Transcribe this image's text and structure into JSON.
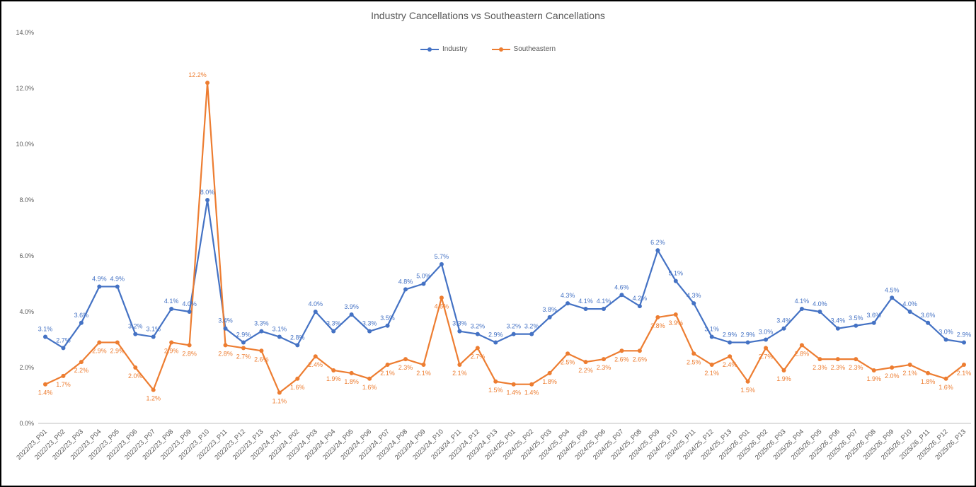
{
  "frame": {
    "background": "#ffffff",
    "border_color": "#000000"
  },
  "chart_data": {
    "type": "line",
    "title": "Industry Cancellations vs Southeastern Cancellations",
    "title_color": "#595959",
    "axis_text_color": "#595959",
    "grid": false,
    "legend_position": "top-center",
    "data_label_format": "0.0%",
    "categories": [
      "2022/23_P01",
      "2022/23_P02",
      "2022/23_P03",
      "2022/23_P04",
      "2022/23_P05",
      "2022/23_P06",
      "2022/23_P07",
      "2022/23_P08",
      "2022/23_P09",
      "2022/23_P10",
      "2022/23_P11",
      "2022/23_P12",
      "2022/23_P13",
      "2023/24_P01",
      "2023/24_P02",
      "2023/24_P03",
      "2023/24_P04",
      "2023/24_P05",
      "2023/24_P06",
      "2023/24_P07",
      "2023/24_P08",
      "2023/24_P09",
      "2023/24_P10",
      "2023/24_P11",
      "2023/24_P12",
      "2023/24_P13",
      "2024/25_P01",
      "2024/25_P02",
      "2024/25_P03",
      "2024/25_P04",
      "2024/25_P05",
      "2024/25_P06",
      "2024/25_P07",
      "2024/25_P08",
      "2024/25_P09",
      "2024/25_P10",
      "2024/25_P11",
      "2024/25_P12",
      "2024/25_P13",
      "2025/26_P01",
      "2025/26_P02",
      "2025/26_P03",
      "2025/26_P04",
      "2025/26_P05",
      "2025/26_P06",
      "2025/26_P07",
      "2025/26_P08",
      "2025/26_P09",
      "2025/26_P10",
      "2025/26_P11",
      "2025/26_P12",
      "2025/26_P13"
    ],
    "series": [
      {
        "name": "Industry",
        "color": "#4472C4",
        "label_position": "above",
        "values": [
          3.1,
          2.7,
          3.6,
          4.9,
          4.9,
          3.2,
          3.1,
          4.1,
          4.0,
          8.0,
          3.4,
          2.9,
          3.3,
          3.1,
          2.8,
          4.0,
          3.3,
          3.9,
          3.3,
          3.5,
          4.8,
          5.0,
          5.7,
          3.3,
          3.2,
          2.9,
          3.2,
          3.2,
          3.8,
          4.3,
          4.1,
          4.1,
          4.6,
          4.2,
          6.2,
          5.1,
          4.3,
          3.1,
          2.9,
          2.9,
          3.0,
          3.4,
          4.1,
          4.0,
          3.4,
          3.5,
          3.6,
          4.5,
          4.0,
          3.6,
          3.0,
          2.9
        ]
      },
      {
        "name": "Southeastern",
        "color": "#ED7D31",
        "label_position": "below",
        "values": [
          1.4,
          1.7,
          2.2,
          2.9,
          2.9,
          2.0,
          1.2,
          2.9,
          2.8,
          12.2,
          2.8,
          2.7,
          2.6,
          1.1,
          1.6,
          2.4,
          1.9,
          1.8,
          1.6,
          2.1,
          2.3,
          2.1,
          4.5,
          2.1,
          2.7,
          1.5,
          1.4,
          1.4,
          1.8,
          2.5,
          2.2,
          2.3,
          2.6,
          2.6,
          3.8,
          3.9,
          2.5,
          2.1,
          2.4,
          1.5,
          2.7,
          1.9,
          2.8,
          2.3,
          2.3,
          2.3,
          1.9,
          2.0,
          2.1,
          1.8,
          1.6,
          2.1
        ]
      }
    ],
    "y_axis": {
      "min": 0,
      "max": 14,
      "tick_values": [
        0,
        2,
        4,
        6,
        8,
        10,
        12,
        14
      ],
      "tick_labels": [
        "0.0%",
        "2.0%",
        "4.0%",
        "6.0%",
        "8.0%",
        "10.0%",
        "12.0%",
        "14.0%"
      ]
    }
  }
}
